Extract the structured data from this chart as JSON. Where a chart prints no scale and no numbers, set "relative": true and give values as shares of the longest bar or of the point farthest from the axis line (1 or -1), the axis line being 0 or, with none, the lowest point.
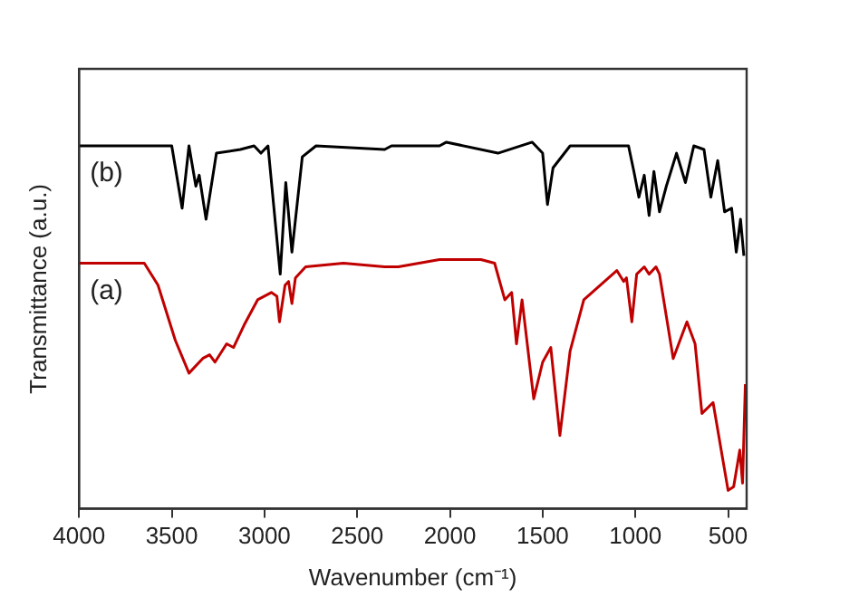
{
  "chart_data": {
    "type": "line",
    "relative": true,
    "xlabel": "Wavenumber (cm⁻¹)",
    "ylabel": "Transmittance (a.u.)",
    "xlim": [
      4000,
      400
    ],
    "xticks": [
      4000,
      3500,
      3000,
      2500,
      2000,
      1500,
      1000,
      500
    ],
    "grid": false,
    "legend": false,
    "marker": "none",
    "line_style": "solid",
    "series": [
      {
        "name": "(b)",
        "color": "#000000",
        "x": [
          4000,
          3500,
          3444,
          3407,
          3370,
          3352,
          3315,
          3259,
          3130,
          3056,
          3019,
          2981,
          2915,
          2885,
          2852,
          2796,
          2722,
          2352,
          2315,
          2056,
          2019,
          1741,
          1556,
          1500,
          1474,
          1444,
          1352,
          1037,
          1008,
          981,
          952,
          926,
          900,
          870,
          833,
          778,
          730,
          685,
          630,
          593,
          556,
          519,
          481,
          456,
          433,
          415
        ],
        "values": [
          0.99,
          0.99,
          0.82,
          0.99,
          0.88,
          0.91,
          0.79,
          0.97,
          0.98,
          0.99,
          0.97,
          0.99,
          0.64,
          0.89,
          0.7,
          0.96,
          0.99,
          0.98,
          0.99,
          0.99,
          1.0,
          0.97,
          1.0,
          0.97,
          0.83,
          0.93,
          0.99,
          0.99,
          0.92,
          0.85,
          0.91,
          0.8,
          0.92,
          0.81,
          0.88,
          0.97,
          0.89,
          0.99,
          0.98,
          0.85,
          0.95,
          0.81,
          0.82,
          0.7,
          0.79,
          0.69
        ]
      },
      {
        "name": "(a)",
        "color": "#c00000",
        "x": [
          4000,
          3648,
          3574,
          3481,
          3407,
          3333,
          3296,
          3267,
          3204,
          3167,
          3111,
          3037,
          2963,
          2933,
          2919,
          2889,
          2870,
          2852,
          2833,
          2778,
          2574,
          2352,
          2278,
          2056,
          2019,
          1833,
          1759,
          1704,
          1667,
          1641,
          1611,
          1548,
          1500,
          1456,
          1407,
          1352,
          1278,
          1100,
          1063,
          1048,
          1019,
          993,
          952,
          926,
          889,
          870,
          796,
          722,
          678,
          641,
          581,
          500,
          470,
          437,
          422,
          407
        ],
        "values": [
          0.67,
          0.67,
          0.61,
          0.46,
          0.37,
          0.41,
          0.42,
          0.4,
          0.45,
          0.44,
          0.5,
          0.57,
          0.59,
          0.58,
          0.51,
          0.61,
          0.62,
          0.56,
          0.63,
          0.66,
          0.67,
          0.66,
          0.66,
          0.68,
          0.68,
          0.68,
          0.67,
          0.57,
          0.59,
          0.45,
          0.57,
          0.3,
          0.4,
          0.44,
          0.2,
          0.43,
          0.57,
          0.65,
          0.62,
          0.63,
          0.51,
          0.64,
          0.66,
          0.64,
          0.66,
          0.64,
          0.41,
          0.51,
          0.45,
          0.26,
          0.29,
          0.05,
          0.06,
          0.16,
          0.07,
          0.34
        ]
      }
    ]
  }
}
